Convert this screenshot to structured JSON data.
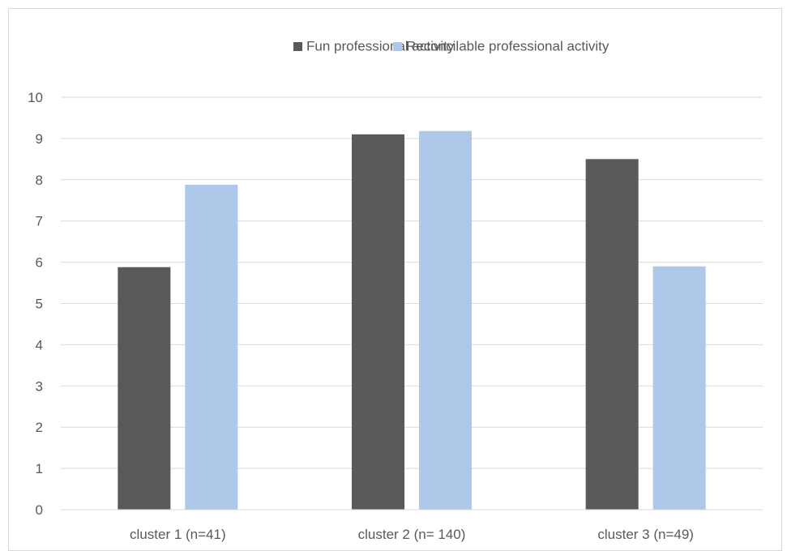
{
  "chart_data": {
    "type": "bar",
    "title": "",
    "xlabel": "",
    "ylabel": "",
    "categories": [
      "cluster 1 (n=41)",
      "cluster 2 (n= 140)",
      "cluster 3 (n=49)"
    ],
    "series": [
      {
        "name": "Fun professional activity",
        "values": [
          5.88,
          9.1,
          8.5
        ],
        "color": "#595959"
      },
      {
        "name": "Reconcilable professional activity",
        "values": [
          7.88,
          9.18,
          5.9
        ],
        "color": "#adc8e8"
      }
    ],
    "ylim": [
      0,
      10
    ],
    "yticks": [
      "0",
      "1",
      "2",
      "3",
      "4",
      "5",
      "6",
      "7",
      "8",
      "9",
      "10"
    ],
    "grid": true,
    "legend": "top-center",
    "colors": {
      "grid": "#d9d9d9",
      "axis_text": "#595959",
      "frame": "#d9d9d9"
    }
  }
}
